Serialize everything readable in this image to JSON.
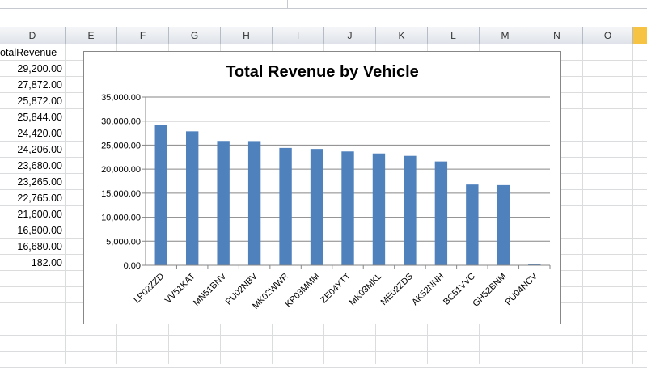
{
  "sheet": {
    "columns": [
      "D",
      "E",
      "F",
      "G",
      "H",
      "I",
      "J",
      "K",
      "L",
      "M",
      "N",
      "O"
    ],
    "header_cell": "otalRevenue",
    "values": [
      "29,200.00",
      "27,872.00",
      "25,872.00",
      "25,844.00",
      "24,420.00",
      "24,206.00",
      "23,680.00",
      "23,265.00",
      "22,765.00",
      "21,600.00",
      "16,800.00",
      "16,680.00",
      "182.00"
    ]
  },
  "chart_data": {
    "type": "bar",
    "title": "Total Revenue by Vehicle",
    "xlabel": "",
    "ylabel": "",
    "categories": [
      "LP02ZZD",
      "VV51KAT",
      "MN51BNV",
      "PU02NBV",
      "MK02WWR",
      "KP03MMM",
      "ZE04YTT",
      "MK03MKL",
      "ME02ZDS",
      "AK52NNH",
      "BC51VVC",
      "GH52BNM",
      "PU04NCV"
    ],
    "values": [
      29200,
      27872,
      25872,
      25844,
      24420,
      24206,
      23680,
      23265,
      22765,
      21600,
      16800,
      16680,
      182
    ],
    "ylim": [
      0,
      35000
    ],
    "yticks": [
      "0.00",
      "5,000.00",
      "10,000.00",
      "15,000.00",
      "20,000.00",
      "25,000.00",
      "30,000.00",
      "35,000.00"
    ],
    "grid": true,
    "legend": "none",
    "bar_color": "#4f81bd"
  }
}
